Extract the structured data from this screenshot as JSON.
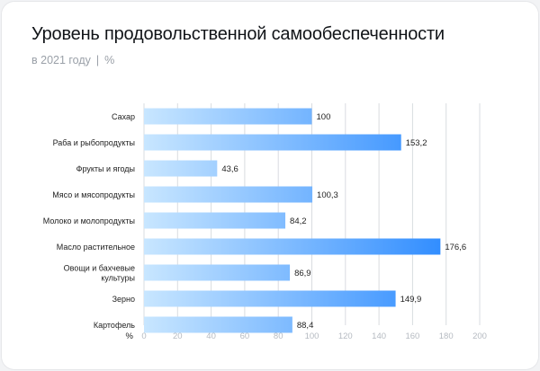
{
  "header": {
    "title": "Уровень продовольственной самообеспеченности",
    "subtitle_year": "в 2021 году",
    "subtitle_sep": "|",
    "subtitle_unit": "%"
  },
  "colors": {
    "bar_start": "#c8e6ff",
    "bar_end": "#2f8cff",
    "grid": "#d9dce0"
  },
  "chart_data": {
    "type": "bar",
    "orientation": "horizontal",
    "title": "Уровень продовольственной самообеспеченности",
    "subtitle": "в 2021 году | %",
    "xlabel": "%",
    "ylabel": "",
    "xlim": [
      0,
      200
    ],
    "xticks": [
      0,
      20,
      40,
      60,
      80,
      100,
      120,
      140,
      160,
      180,
      200
    ],
    "grid": true,
    "categories": [
      [
        "Сахар"
      ],
      [
        "Раба и рыбопродукты"
      ],
      [
        "Фрукты и ягоды"
      ],
      [
        "Мясо и мясопродукты"
      ],
      [
        "Молоко и молопродукты"
      ],
      [
        "Масло растительное"
      ],
      [
        "Овощи и бахчевые",
        "культуры"
      ],
      [
        "Зерно"
      ],
      [
        "Картофель"
      ]
    ],
    "values": [
      100,
      153.2,
      43.6,
      100.3,
      84.2,
      176.6,
      86.9,
      149.9,
      88.4
    ],
    "value_labels": [
      "100",
      "153,2",
      "43,6",
      "100,3",
      "84,2",
      "176,6",
      "86,9",
      "149,9",
      "88,4"
    ]
  }
}
